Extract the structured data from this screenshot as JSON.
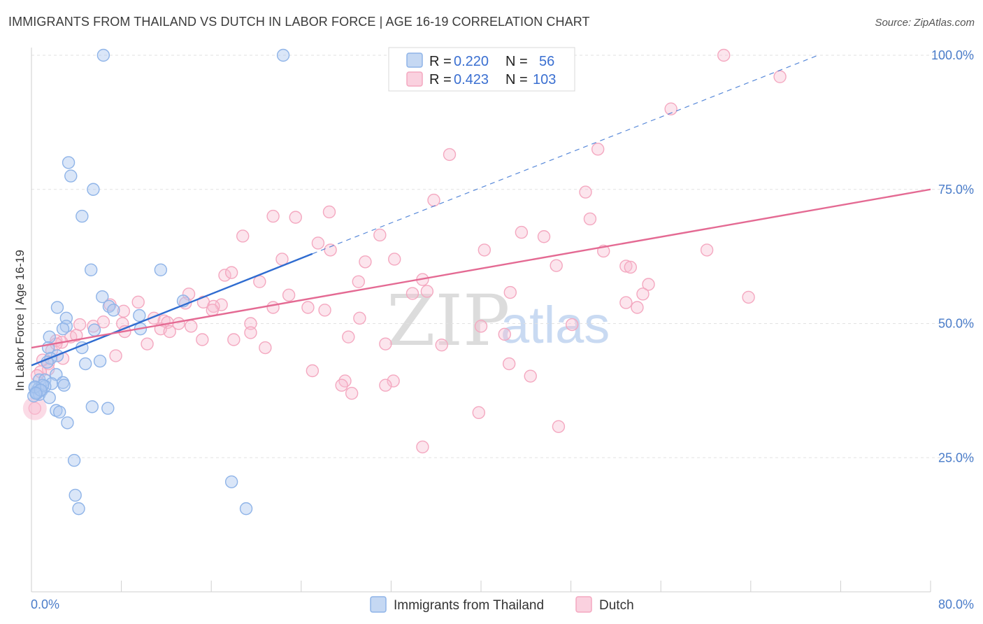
{
  "header": {
    "title": "IMMIGRANTS FROM THAILAND VS DUTCH IN LABOR FORCE | AGE 16-19 CORRELATION CHART",
    "source": "Source: ZipAtlas.com"
  },
  "watermark": {
    "zip": "ZIP",
    "atlas": "atlas"
  },
  "legend": {
    "rows": [
      {
        "r_label": "R =",
        "r_value": "0.220",
        "n_label": "N =",
        "n_value": "56",
        "color": "#8fb4e8"
      },
      {
        "r_label": "R =",
        "r_value": "0.423",
        "n_label": "N =",
        "n_value": "103",
        "color": "#f4a8c0"
      }
    ]
  },
  "bottom_legend": [
    {
      "label": "Immigrants from Thailand",
      "color": "#8fb4e8"
    },
    {
      "label": "Dutch",
      "color": "#f4a8c0"
    }
  ],
  "chart_data": {
    "type": "scatter",
    "title": "IMMIGRANTS FROM THAILAND VS DUTCH IN LABOR FORCE | AGE 16-19 CORRELATION CHART",
    "xlabel": "",
    "ylabel": "In Labor Force | Age 16-19",
    "xlim": [
      0,
      80
    ],
    "ylim": [
      0,
      100
    ],
    "x_tick_labels": [
      "0.0%",
      "80.0%"
    ],
    "y_ticks": [
      25,
      50,
      75,
      100
    ],
    "y_tick_labels": [
      "25.0%",
      "50.0%",
      "75.0%",
      "100.0%"
    ],
    "grid": true,
    "legend_position": "top-center",
    "series": [
      {
        "name": "Immigrants from Thailand",
        "color": "#8fb4e8",
        "line_color": "#2f6cd0",
        "trend": {
          "x": [
            0,
            25
          ],
          "y": [
            42.2,
            63.0
          ],
          "dashed_to": [
            70,
            100
          ]
        },
        "points": [
          [
            6.4,
            100
          ],
          [
            22.4,
            100
          ],
          [
            3.3,
            80
          ],
          [
            3.5,
            77.5
          ],
          [
            5.5,
            75
          ],
          [
            4.5,
            70
          ],
          [
            5.3,
            60
          ],
          [
            11.5,
            60
          ],
          [
            6.3,
            55
          ],
          [
            13.5,
            54.2
          ],
          [
            2.3,
            53
          ],
          [
            6.9,
            53.2
          ],
          [
            7.3,
            52.5
          ],
          [
            9.6,
            51.5
          ],
          [
            3.1,
            51
          ],
          [
            3.1,
            49.5
          ],
          [
            2.8,
            49
          ],
          [
            5.6,
            48.8
          ],
          [
            9.7,
            49
          ],
          [
            1.6,
            47.5
          ],
          [
            1.5,
            45.5
          ],
          [
            4.5,
            45.5
          ],
          [
            2.3,
            44
          ],
          [
            1.7,
            43.5
          ],
          [
            1.4,
            42.8
          ],
          [
            4.8,
            42.5
          ],
          [
            6.1,
            43
          ],
          [
            2.2,
            40.5
          ],
          [
            0.7,
            39.5
          ],
          [
            1.2,
            39.5
          ],
          [
            2.8,
            39
          ],
          [
            1.8,
            38.8
          ],
          [
            2.9,
            38.5
          ],
          [
            1.2,
            38.3
          ],
          [
            0.3,
            38
          ],
          [
            0.6,
            37.8
          ],
          [
            0.9,
            37.5
          ],
          [
            0.4,
            37.2
          ],
          [
            0.5,
            37
          ],
          [
            0.7,
            36.8
          ],
          [
            0.2,
            36.5
          ],
          [
            1.6,
            36.2
          ],
          [
            5.4,
            34.5
          ],
          [
            6.8,
            34.2
          ],
          [
            2.2,
            33.8
          ],
          [
            2.5,
            33.5
          ],
          [
            3.2,
            31.5
          ],
          [
            3.8,
            24.5
          ],
          [
            17.8,
            20.5
          ],
          [
            3.9,
            18
          ],
          [
            4.2,
            15.5
          ],
          [
            19.1,
            15.5
          ],
          [
            1.0,
            38.5
          ],
          [
            0.3,
            38.2
          ],
          [
            0.8,
            37.6
          ],
          [
            0.4,
            37.0
          ]
        ]
      },
      {
        "name": "Dutch",
        "color": "#f4a8c0",
        "line_color": "#e46a93",
        "trend": {
          "x": [
            0,
            80
          ],
          "y": [
            45.5,
            75.0
          ]
        },
        "points": [
          [
            33.4,
            100
          ],
          [
            61.6,
            100
          ],
          [
            66.6,
            96
          ],
          [
            56.9,
            90
          ],
          [
            37.2,
            81.5
          ],
          [
            50.4,
            82.5
          ],
          [
            49.3,
            74.5
          ],
          [
            35.8,
            73
          ],
          [
            26.5,
            70.8
          ],
          [
            21.5,
            70
          ],
          [
            23.5,
            69.8
          ],
          [
            49.7,
            69.5
          ],
          [
            43.6,
            67
          ],
          [
            31.0,
            66.5
          ],
          [
            45.6,
            66.2
          ],
          [
            18.8,
            66.3
          ],
          [
            25.5,
            65
          ],
          [
            26.6,
            63.7
          ],
          [
            40.3,
            63.7
          ],
          [
            60.1,
            63.7
          ],
          [
            50.9,
            63.5
          ],
          [
            22.3,
            62
          ],
          [
            29.7,
            61.5
          ],
          [
            32.3,
            62
          ],
          [
            46.7,
            60.8
          ],
          [
            52.9,
            60.7
          ],
          [
            53.3,
            60.5
          ],
          [
            17.2,
            59
          ],
          [
            17.8,
            59.5
          ],
          [
            34.8,
            58.2
          ],
          [
            20.3,
            57.8
          ],
          [
            29.1,
            57.8
          ],
          [
            54.9,
            57.3
          ],
          [
            35.2,
            56
          ],
          [
            42.6,
            55.8
          ],
          [
            33.9,
            55.6
          ],
          [
            14.0,
            55.5
          ],
          [
            22.9,
            55.3
          ],
          [
            54.4,
            55.5
          ],
          [
            63.8,
            54.9
          ],
          [
            9.5,
            54
          ],
          [
            15.3,
            54
          ],
          [
            13.7,
            53.8
          ],
          [
            16.9,
            53.5
          ],
          [
            7.0,
            53.5
          ],
          [
            16.2,
            53.2
          ],
          [
            21.5,
            53
          ],
          [
            52.9,
            53.9
          ],
          [
            53.9,
            53
          ],
          [
            24.6,
            53
          ],
          [
            26.1,
            52.5
          ],
          [
            16.1,
            52.5
          ],
          [
            8.2,
            52.3
          ],
          [
            29.2,
            51
          ],
          [
            10.9,
            51
          ],
          [
            11.8,
            50.5
          ],
          [
            12.1,
            50.2
          ],
          [
            8.1,
            50
          ],
          [
            6.4,
            50.3
          ],
          [
            19.5,
            50
          ],
          [
            13.1,
            50
          ],
          [
            48.1,
            49.8
          ],
          [
            4.3,
            49.8
          ],
          [
            14.2,
            49.5
          ],
          [
            5.5,
            49.5
          ],
          [
            40.0,
            49.5
          ],
          [
            11.5,
            49
          ],
          [
            8.3,
            48.5
          ],
          [
            12.3,
            48.5
          ],
          [
            19.5,
            48.3
          ],
          [
            42.1,
            48
          ],
          [
            3.5,
            47.5
          ],
          [
            4.0,
            47.8
          ],
          [
            28.2,
            47.5
          ],
          [
            15.2,
            47
          ],
          [
            18.0,
            47
          ],
          [
            2.2,
            46.8
          ],
          [
            2.7,
            46.5
          ],
          [
            10.3,
            46.2
          ],
          [
            31.5,
            46.2
          ],
          [
            36.5,
            46
          ],
          [
            20.8,
            45.5
          ],
          [
            1.8,
            45
          ],
          [
            7.5,
            44
          ],
          [
            2.8,
            43.5
          ],
          [
            1.5,
            42.5
          ],
          [
            42.5,
            42.5
          ],
          [
            1.5,
            41.5
          ],
          [
            25.0,
            41.2
          ],
          [
            0.8,
            41
          ],
          [
            44.4,
            40.2
          ],
          [
            32.2,
            39.3
          ],
          [
            27.9,
            39.3
          ],
          [
            27.6,
            38.5
          ],
          [
            31.5,
            38.5
          ],
          [
            28.5,
            37
          ],
          [
            0.3,
            34.2
          ],
          [
            39.8,
            33.4
          ],
          [
            46.9,
            30.8
          ],
          [
            34.8,
            27
          ],
          [
            1.0,
            43.2
          ],
          [
            0.5,
            40.3
          ],
          [
            2.2,
            46.2
          ]
        ]
      }
    ]
  }
}
